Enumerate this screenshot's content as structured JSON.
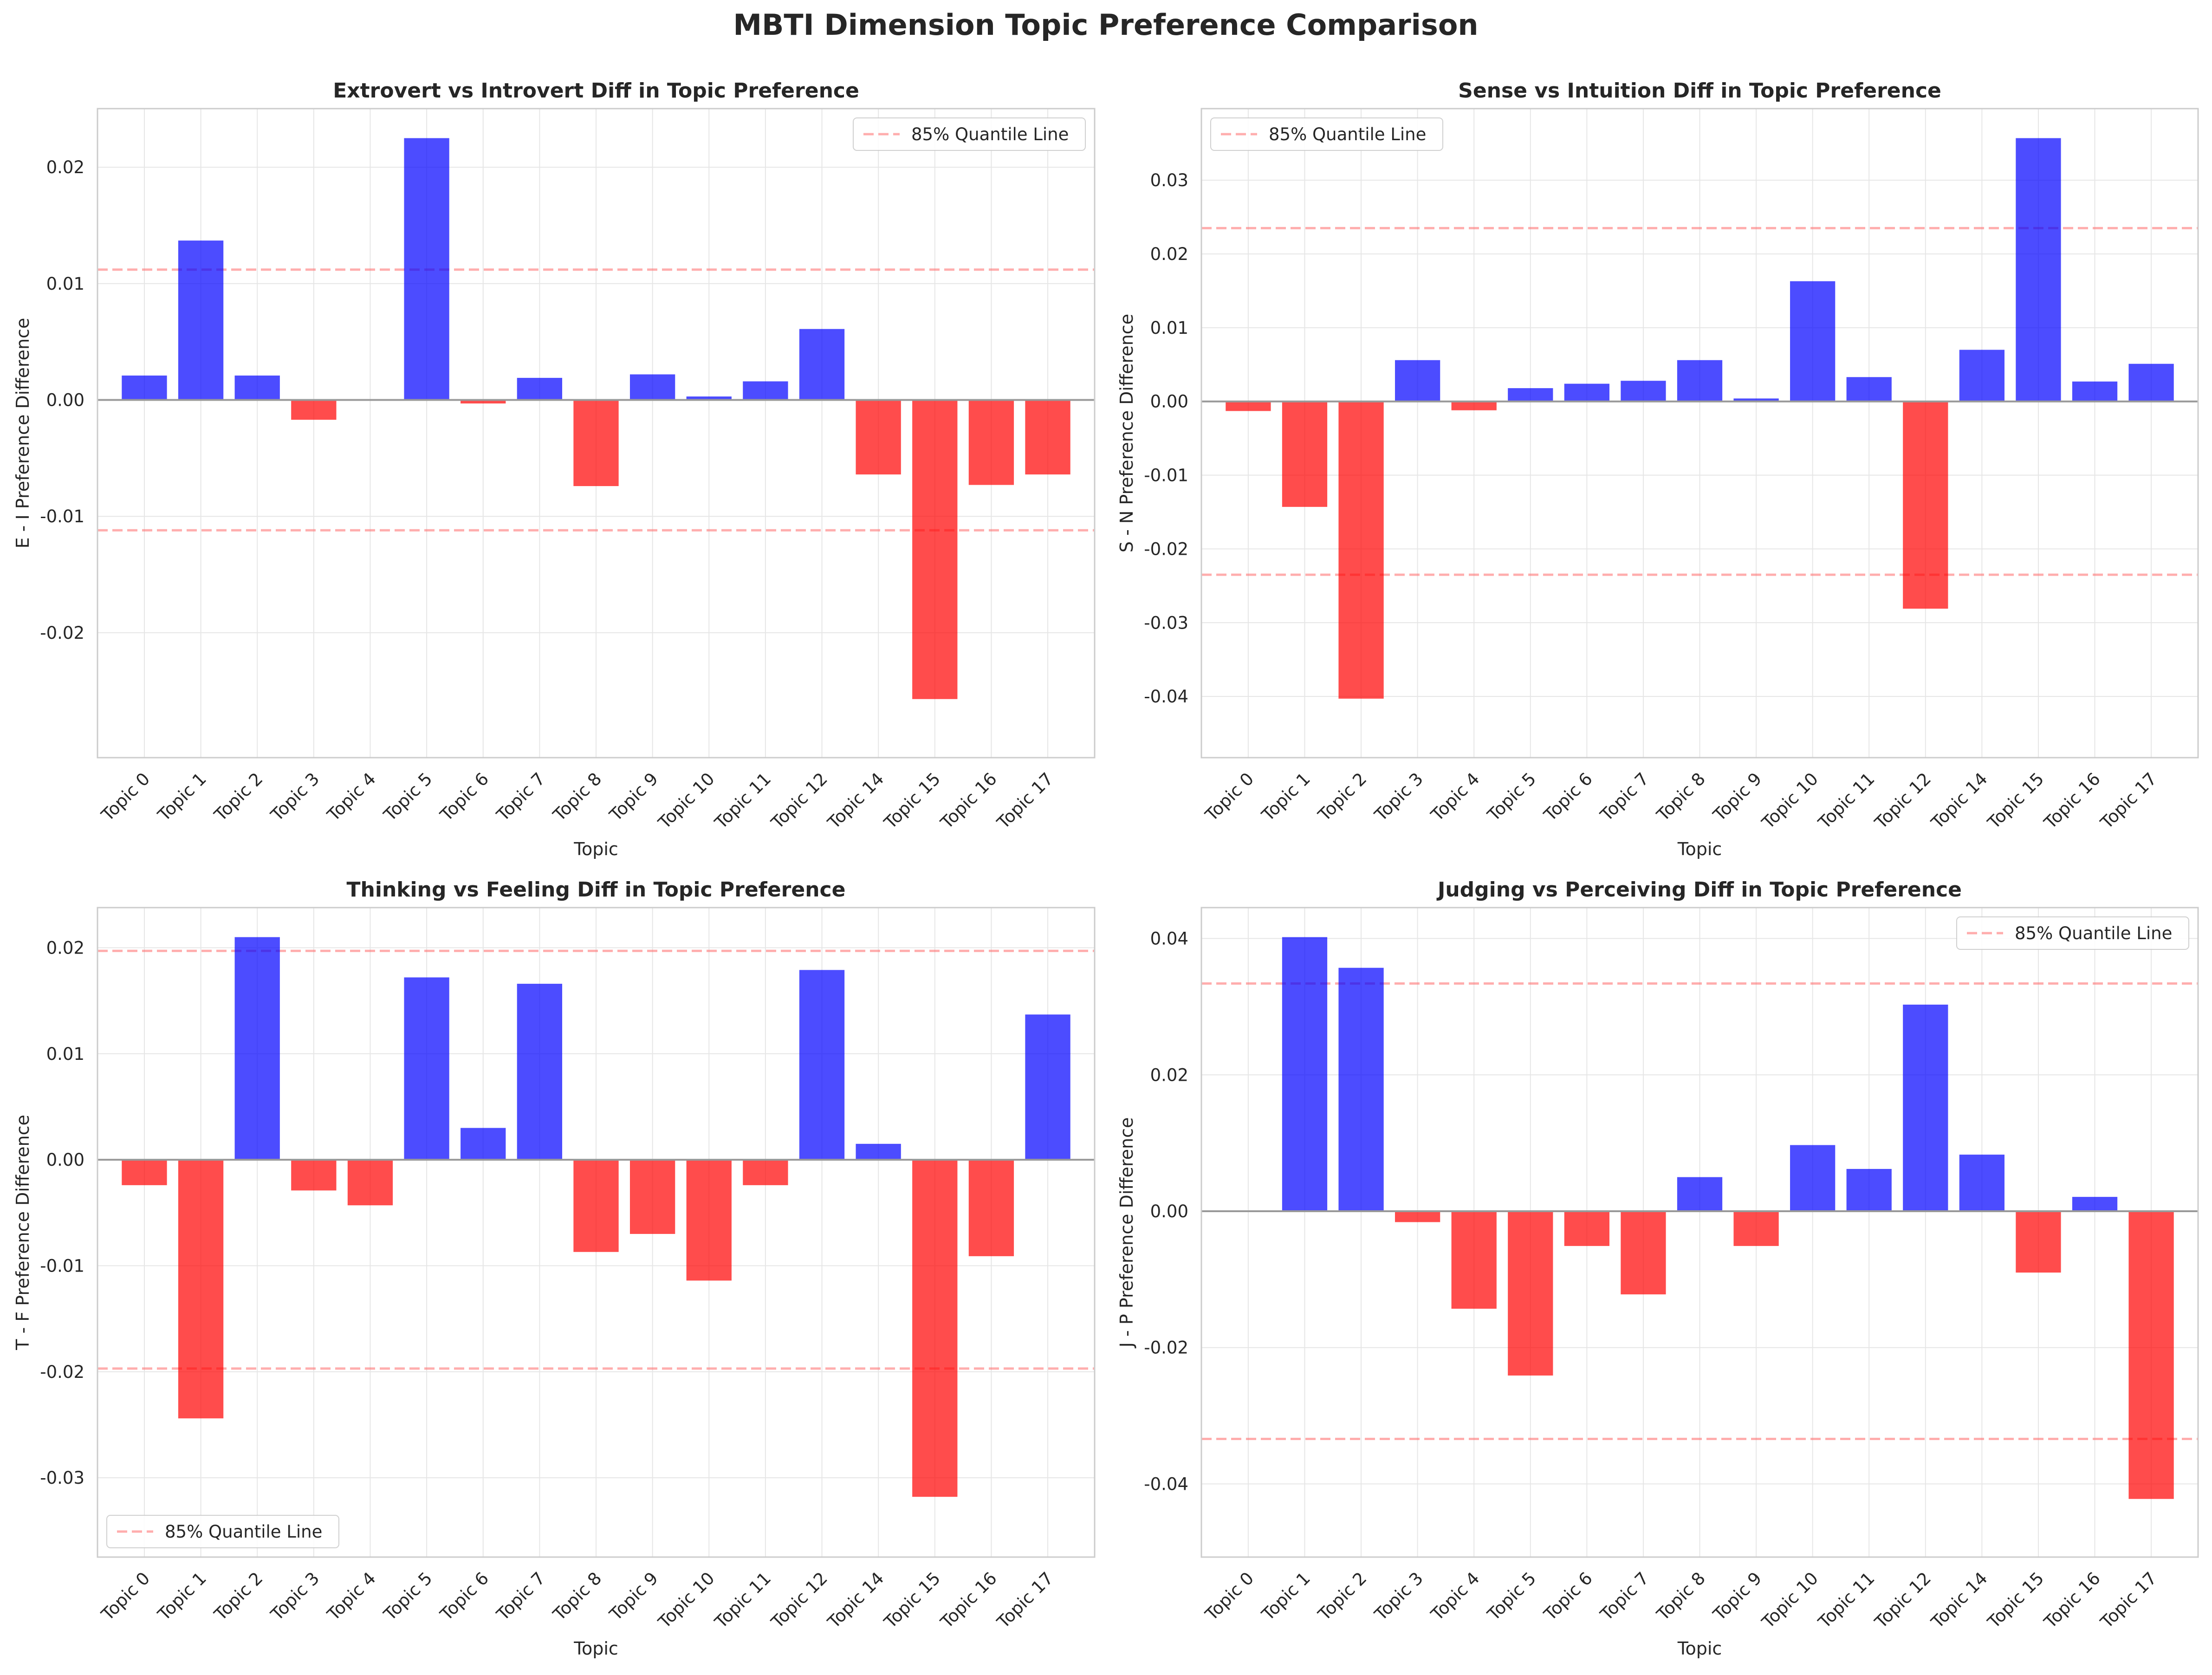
{
  "figure_title": "MBTI Dimension Topic Preference Comparison",
  "colors": {
    "positive": "#0000ff",
    "negative": "#ff0000",
    "quantile": "#ff6b6b",
    "zero_line": "#999999",
    "grid": "#e6e6e6"
  },
  "chart_data": [
    {
      "type": "bar",
      "title": "Extrovert vs Introvert Diff in Topic Preference",
      "xlabel": "Topic",
      "ylabel": "E - I Preference Difference",
      "categories": [
        "Topic 0",
        "Topic 1",
        "Topic 2",
        "Topic 3",
        "Topic 4",
        "Topic 5",
        "Topic 6",
        "Topic 7",
        "Topic 8",
        "Topic 9",
        "Topic 10",
        "Topic 11",
        "Topic 12",
        "Topic 14",
        "Topic 15",
        "Topic 16",
        "Topic 17"
      ],
      "values": [
        0.0021,
        0.0137,
        0.0021,
        -0.0017,
        0.0,
        0.0225,
        -0.0003,
        0.0019,
        -0.0074,
        0.0022,
        0.0003,
        0.0016,
        0.0061,
        -0.0064,
        -0.0257,
        -0.0073,
        -0.0064
      ],
      "ylim": [
        -0.0282,
        0.0225
      ],
      "yticks": [
        -0.02,
        -0.01,
        0.0,
        0.01,
        0.02
      ],
      "ytick_labels": [
        "-0.02",
        "-0.01",
        "0.00",
        "0.01",
        "0.02"
      ],
      "quantile_line": 0.0112,
      "legend_label": "85% Quantile Line",
      "legend_position": "top-right",
      "grid": true
    },
    {
      "type": "bar",
      "title": "Sense vs Intuition Diff in Topic Preference",
      "xlabel": "Topic",
      "ylabel": "S - N Preference Difference",
      "categories": [
        "Topic 0",
        "Topic 1",
        "Topic 2",
        "Topic 3",
        "Topic 4",
        "Topic 5",
        "Topic 6",
        "Topic 7",
        "Topic 8",
        "Topic 9",
        "Topic 10",
        "Topic 11",
        "Topic 12",
        "Topic 14",
        "Topic 15",
        "Topic 16",
        "Topic 17"
      ],
      "values": [
        -0.0013,
        -0.0143,
        -0.0403,
        0.0056,
        -0.0012,
        0.0018,
        0.0024,
        0.0028,
        0.0056,
        0.0004,
        0.0163,
        0.0033,
        -0.0281,
        0.007,
        0.0357,
        0.0027,
        0.0051
      ],
      "ylim": [
        -0.0443,
        0.0357
      ],
      "yticks": [
        -0.04,
        -0.03,
        -0.02,
        -0.01,
        0.0,
        0.01,
        0.02,
        0.03
      ],
      "ytick_labels": [
        "-0.04",
        "-0.03",
        "-0.02",
        "-0.01",
        "0.00",
        "0.01",
        "0.02",
        "0.03"
      ],
      "quantile_line": 0.0235,
      "legend_label": "85% Quantile Line",
      "legend_position": "top-left",
      "grid": true
    },
    {
      "type": "bar",
      "title": "Thinking vs Feeling Diff in Topic Preference",
      "xlabel": "Topic",
      "ylabel": "T - F Preference Difference",
      "categories": [
        "Topic 0",
        "Topic 1",
        "Topic 2",
        "Topic 3",
        "Topic 4",
        "Topic 5",
        "Topic 6",
        "Topic 7",
        "Topic 8",
        "Topic 9",
        "Topic 10",
        "Topic 11",
        "Topic 12",
        "Topic 14",
        "Topic 15",
        "Topic 16",
        "Topic 17"
      ],
      "values": [
        -0.0024,
        -0.0244,
        0.021,
        -0.0029,
        -0.0043,
        0.0172,
        0.003,
        0.0166,
        -0.0087,
        -0.007,
        -0.0114,
        -0.0024,
        0.0179,
        0.0015,
        -0.0318,
        -0.0091,
        0.0137
      ],
      "ylim": [
        -0.0347,
        0.021
      ],
      "yticks": [
        -0.03,
        -0.02,
        -0.01,
        0.0,
        0.01,
        0.02
      ],
      "ytick_labels": [
        "-0.03",
        "-0.02",
        "-0.01",
        "0.00",
        "0.01",
        "0.02"
      ],
      "quantile_line": 0.0197,
      "legend_label": "85% Quantile Line",
      "legend_position": "bottom-left",
      "grid": true
    },
    {
      "type": "bar",
      "title": "Judging vs Perceiving Diff in Topic Preference",
      "xlabel": "Topic",
      "ylabel": "J - P Preference Difference",
      "categories": [
        "Topic 0",
        "Topic 1",
        "Topic 2",
        "Topic 3",
        "Topic 4",
        "Topic 5",
        "Topic 6",
        "Topic 7",
        "Topic 8",
        "Topic 9",
        "Topic 10",
        "Topic 11",
        "Topic 12",
        "Topic 14",
        "Topic 15",
        "Topic 16",
        "Topic 17"
      ],
      "values": [
        0.0,
        0.0402,
        0.0357,
        -0.0016,
        -0.0143,
        -0.0241,
        -0.0051,
        -0.0122,
        0.005,
        -0.0051,
        0.0097,
        0.0062,
        0.0303,
        0.0083,
        -0.009,
        0.0021,
        -0.0422
      ],
      "ylim": [
        -0.0464,
        0.0402
      ],
      "yticks": [
        -0.04,
        -0.02,
        0.0,
        0.02,
        0.04
      ],
      "ytick_labels": [
        "-0.04",
        "-0.02",
        "0.00",
        "0.02",
        "0.04"
      ],
      "quantile_line": 0.0334,
      "legend_label": "85% Quantile Line",
      "legend_position": "top-right",
      "grid": true
    }
  ]
}
